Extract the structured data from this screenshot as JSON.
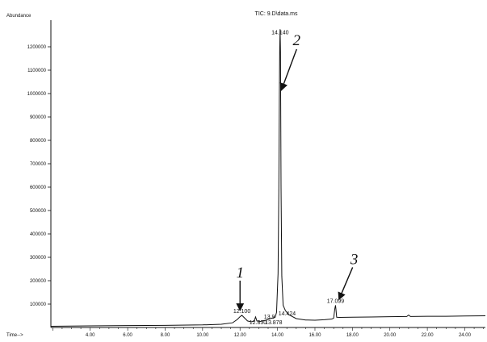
{
  "chart_data": {
    "type": "line",
    "title": "TIC: 9.D\\data.ms",
    "ylabel": "Abundance",
    "xlabel": "Time-->",
    "xlim": [
      1.9,
      25.1
    ],
    "ylim": [
      0,
      1300000
    ],
    "x_ticks": [
      "4.00",
      "6.00",
      "8.00",
      "10.00",
      "12.00",
      "14.00",
      "16.00",
      "18.00",
      "20.00",
      "22.00",
      "24.00"
    ],
    "y_ticks": [
      "100000",
      "200000",
      "300000",
      "400000",
      "500000",
      "600000",
      "700000",
      "800000",
      "900000",
      "1000000",
      "1100000",
      "1200000"
    ],
    "grid": false,
    "legend": "none",
    "series": [
      {
        "x": [
          1.9,
          4.0,
          6.0,
          8.0,
          10.0,
          11.0,
          11.6,
          11.85,
          12.0,
          12.1,
          12.2,
          12.4,
          12.6,
          12.75,
          12.83,
          12.9,
          13.1,
          13.4,
          13.7,
          13.878,
          13.95,
          14.03,
          14.07,
          14.1,
          14.12,
          14.14,
          14.16,
          14.19,
          14.23,
          14.3,
          14.424,
          14.6,
          15.0,
          15.5,
          16.0,
          16.5,
          16.9,
          17.0,
          17.03,
          17.06,
          17.099,
          17.13,
          17.16,
          17.3,
          18.0,
          19.0,
          20.0,
          20.9,
          21.0,
          21.1,
          22.0,
          23.0,
          24.0,
          25.1
        ],
        "y": [
          5000,
          7000,
          8000,
          9000,
          11000,
          14000,
          20000,
          34000,
          46000,
          52000,
          44000,
          28000,
          24000,
          27000,
          45000,
          28000,
          26000,
          32000,
          40000,
          44000,
          65000,
          230000,
          580000,
          1000000,
          1200000,
          1275000,
          1180000,
          600000,
          220000,
          95000,
          72000,
          55000,
          38000,
          32000,
          31000,
          33000,
          36000,
          40000,
          60000,
          80000,
          95000,
          70000,
          44000,
          43000,
          44000,
          45000,
          46000,
          47000,
          53000,
          47000,
          48000,
          48000,
          49000,
          50000
        ]
      }
    ],
    "peak_labels": [
      {
        "text": "14.140",
        "x": 14.14,
        "y": 1275000
      },
      {
        "text": "12.100",
        "x": 12.1,
        "y": 52000
      },
      {
        "text": "12.830",
        "x": 12.83,
        "y": 45000
      },
      {
        "text": "13.878",
        "x": 13.878,
        "y": 44000
      },
      {
        "text": "13.9",
        "x": 13.95,
        "y": 65000
      },
      {
        "text": "14.424",
        "x": 14.424,
        "y": 72000
      },
      {
        "text": "17.099",
        "x": 17.099,
        "y": 95000
      }
    ],
    "annotations": [
      {
        "text": "1",
        "x": 12.0,
        "y": 52000
      },
      {
        "text": "2",
        "x": 14.16,
        "y": 1000000
      },
      {
        "text": "3",
        "x": 17.15,
        "y": 95000
      }
    ]
  }
}
